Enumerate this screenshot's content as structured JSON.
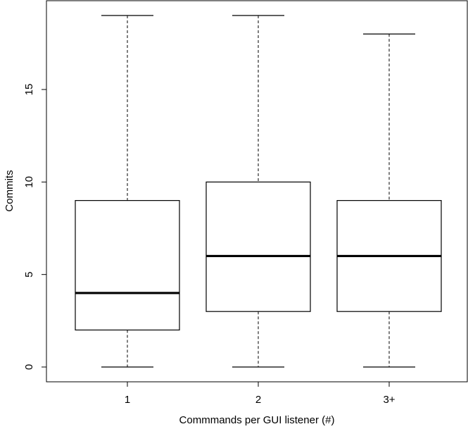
{
  "chart_data": {
    "type": "boxplot",
    "xlabel": "Commmands per GUI listener (#)",
    "ylabel": "Commits",
    "ylim": [
      -0.8,
      19.8
    ],
    "yticks": [
      0,
      5,
      10,
      15
    ],
    "categories": [
      "1",
      "2",
      "3+"
    ],
    "boxes": [
      {
        "category": "1",
        "min": 0,
        "q1": 2,
        "median": 4,
        "q3": 9,
        "max": 19
      },
      {
        "category": "2",
        "min": 0,
        "q1": 3,
        "median": 6,
        "q3": 10,
        "max": 19
      },
      {
        "category": "3+",
        "min": 0,
        "q1": 3,
        "median": 6,
        "q3": 9,
        "max": 18
      }
    ],
    "grid": false
  }
}
